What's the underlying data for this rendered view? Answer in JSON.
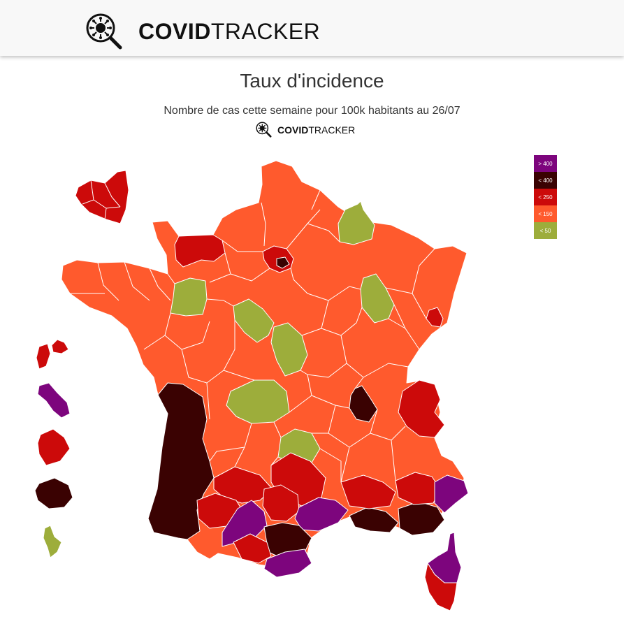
{
  "header": {
    "brand_bold": "COVID",
    "brand_light": "TRACKER",
    "logo_icon": "virus-magnifier-icon"
  },
  "title": "Taux d'incidence",
  "subtitle": "Nombre de cas cette semaine pour 100k habitants au 26/07",
  "colors": {
    "green": "#9dad3b",
    "orange": "#ff5a2d",
    "red": "#cc0a0a",
    "darkred": "#3a0202",
    "purple": "#7d057d"
  },
  "legend": [
    {
      "label": "> 400",
      "color": "#7d057d"
    },
    {
      "label": "< 400",
      "color": "#3a0202"
    },
    {
      "label": "< 250",
      "color": "#cc0a0a"
    },
    {
      "label": "< 150",
      "color": "#ff5a2d"
    },
    {
      "label": "< 50",
      "color": "#9dad3b"
    }
  ]
}
